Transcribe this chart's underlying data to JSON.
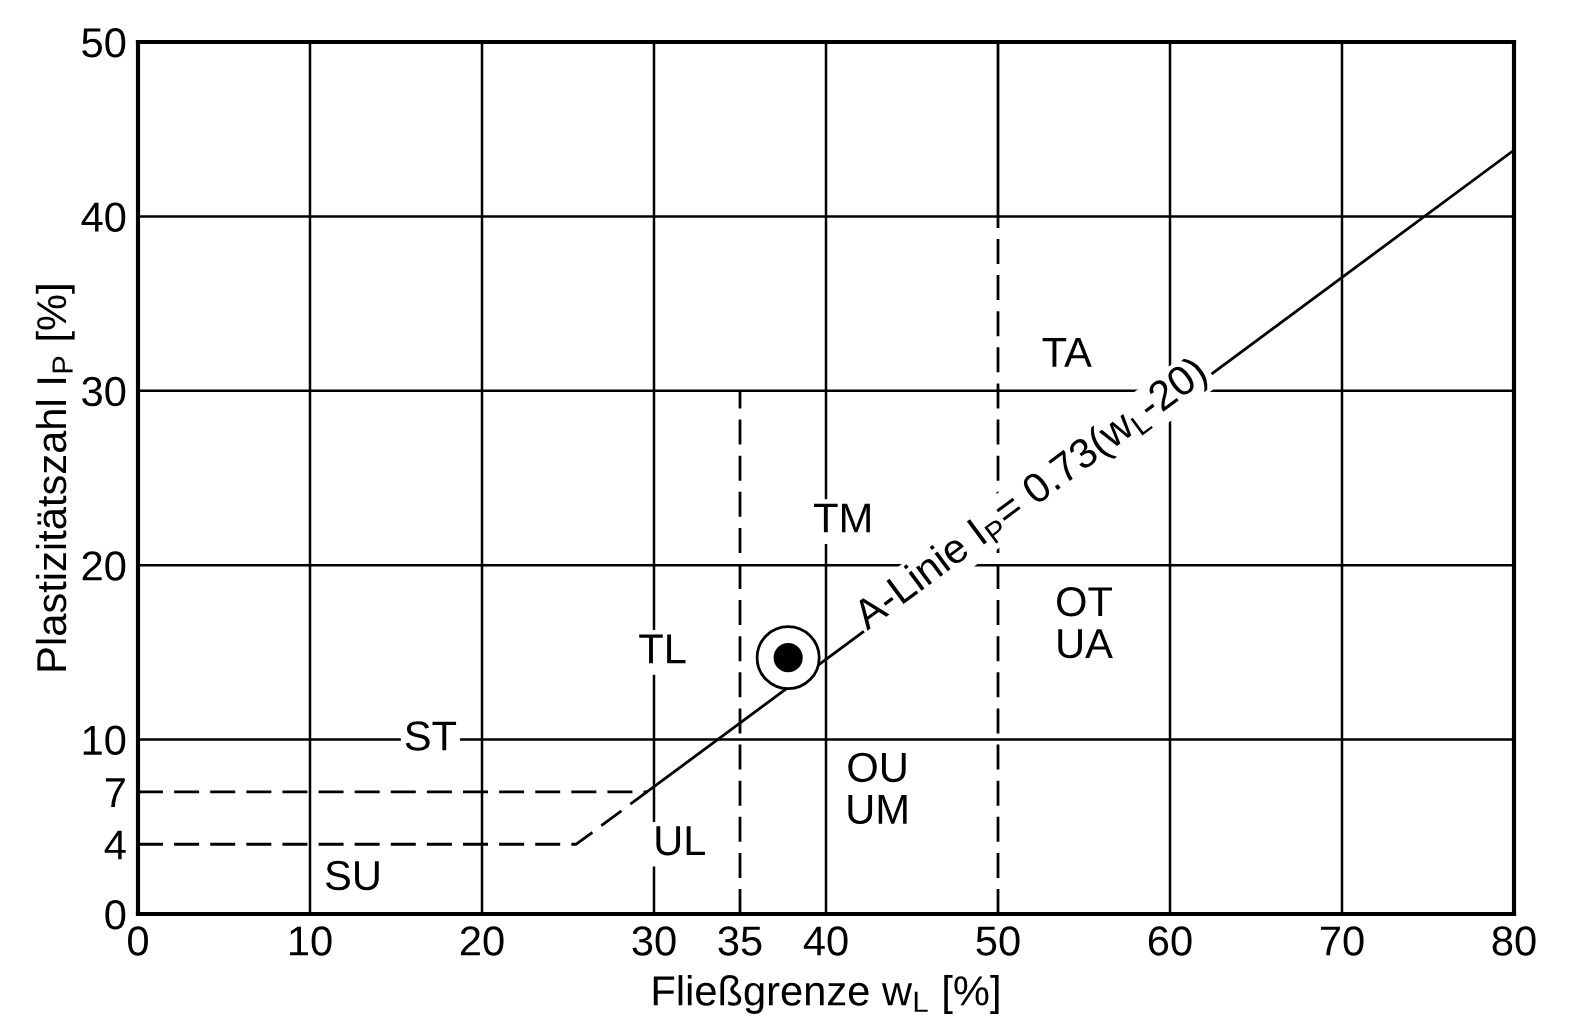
{
  "chart_data": {
    "type": "line",
    "xlabel": "Fließgrenze w$_{L}$ [%]",
    "ylabel": "Plastizitätszahl I$_{P}$ [%]",
    "xlim": [
      0,
      80
    ],
    "ylim": [
      0,
      50
    ],
    "xticks": [
      0,
      10,
      20,
      30,
      35,
      40,
      50,
      60,
      70,
      80
    ],
    "yticks": [
      0,
      4,
      7,
      10,
      20,
      30,
      40,
      50
    ],
    "grid": false,
    "series": [
      {
        "color": "#000000",
        "x": [
          29.59,
          80
        ],
        "values": [
          7,
          43.8
        ],
        "line_style": "solid"
      },
      {
        "color": "#000000",
        "x": [
          0,
          25.48,
          29.59
        ],
        "values": [
          4,
          4,
          7
        ],
        "line_style": "dashed"
      },
      {
        "color": "#000000",
        "x": [
          0,
          29.59
        ],
        "values": [
          7,
          7
        ],
        "line_style": "dashed"
      },
      {
        "color": "#000000",
        "x": [
          35,
          35
        ],
        "values": [
          0,
          30
        ],
        "line_style": "dashed"
      },
      {
        "color": "#000000",
        "x": [
          50,
          50
        ],
        "values": [
          0,
          40
        ],
        "line_style": "dashed"
      },
      {
        "color": "#000000",
        "x": [
          50,
          50
        ],
        "values": [
          40,
          50
        ],
        "line_style": "solid"
      },
      {
        "type": "scatter",
        "color": "#000000",
        "x": [
          37.8
        ],
        "values": [
          14.7
        ],
        "marker": "circle"
      }
    ],
    "ref_lines": [
      {
        "axis": "x",
        "value": 10
      },
      {
        "axis": "x",
        "value": 20
      },
      {
        "axis": "x",
        "value": 30
      },
      {
        "axis": "x",
        "value": 40
      },
      {
        "axis": "x",
        "value": 60
      },
      {
        "axis": "x",
        "value": 70
      },
      {
        "axis": "y",
        "value": 10
      },
      {
        "axis": "y",
        "value": 20
      },
      {
        "axis": "y",
        "value": 30
      },
      {
        "axis": "y",
        "value": 40
      }
    ],
    "annotations": [
      {
        "text": "TA",
        "x": 54,
        "y": 32
      },
      {
        "text": "TM",
        "x": 41,
        "y": 22.5
      },
      {
        "text": "TL",
        "x": 30.5,
        "y": 15
      },
      {
        "text": "ST",
        "x": 17,
        "y": 10
      },
      {
        "text": "SU",
        "x": 12.5,
        "y": 2
      },
      {
        "text": "UL",
        "x": 31.5,
        "y": 4
      },
      {
        "text": "OU\nUM",
        "x": 43,
        "y": 7
      },
      {
        "text": "OT\nUA",
        "x": 55,
        "y": 16.5
      },
      {
        "text": "A-Linie I$_{P}$= 0.73(w$_{L}$-20)",
        "x": 52,
        "y": 24
      }
    ]
  }
}
